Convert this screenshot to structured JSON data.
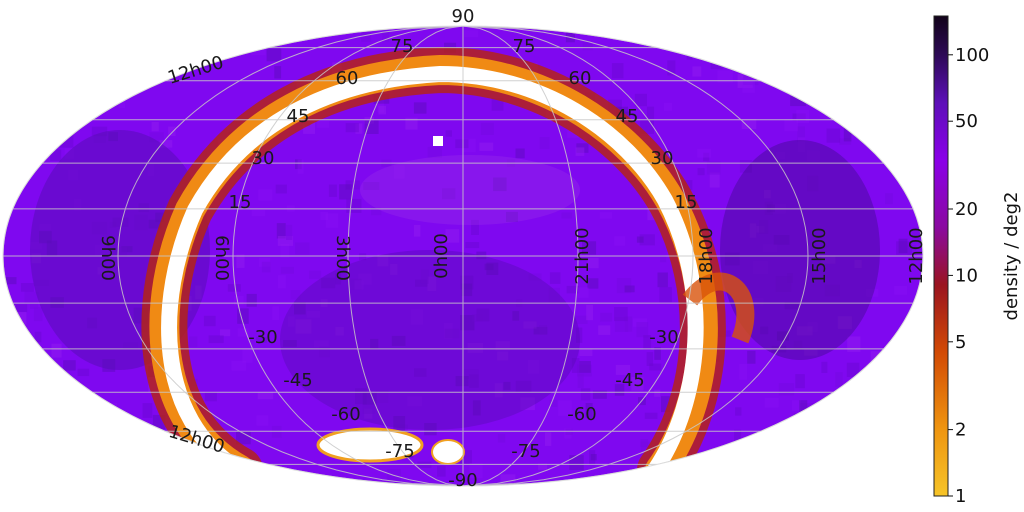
{
  "chart_data": {
    "type": "heatmap",
    "projection": "mollweide",
    "description_of_values": "source density per square degree, log color scale",
    "grid": true,
    "colormap": [
      "#f6bf2a",
      "#ef8a12",
      "#d24a05",
      "#a31b1b",
      "#7a0d68",
      "#8a00e8",
      "#7a10d8",
      "#3d0b70",
      "#120318"
    ],
    "band_color": "#ffffff",
    "dec_labels_top": [
      "90",
      "75",
      "75",
      "60",
      "60",
      "45",
      "45",
      "30",
      "30",
      "15",
      "15"
    ],
    "dec_labels_bottom": [
      "-30",
      "-30",
      "-45",
      "-45",
      "-60",
      "-60",
      "-75",
      "-75",
      "-90"
    ],
    "ra_labels": [
      "12h00",
      "9h00",
      "6h00",
      "3h00",
      "0h00",
      "21h00",
      "18h00",
      "15h00",
      "12h00",
      "12h00"
    ],
    "colorbar": {
      "label": "density / deg2",
      "scale": "log",
      "range": [
        1,
        150
      ],
      "ticks": [
        "1",
        "2",
        "5",
        "10",
        "20",
        "50",
        "100"
      ],
      "tick_values": [
        1,
        2,
        5,
        10,
        20,
        50,
        100
      ]
    }
  }
}
